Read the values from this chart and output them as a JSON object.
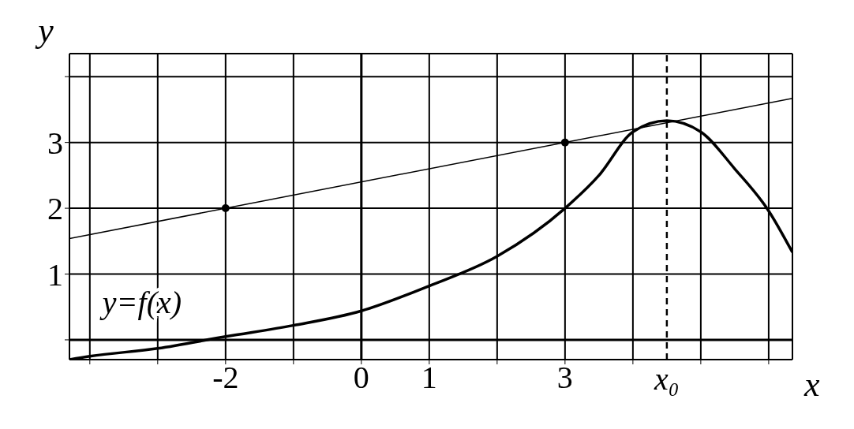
{
  "chart_data": {
    "type": "line",
    "xlabel": "x",
    "ylabel": "y",
    "xlim": [
      -4.3,
      6.35
    ],
    "ylim": [
      -0.3,
      4.35
    ],
    "xticks": [
      {
        "value": -4,
        "label": null
      },
      {
        "value": -3,
        "label": null
      },
      -2,
      {
        "value": -1,
        "label": null
      },
      0,
      1,
      {
        "value": 2,
        "label": null
      },
      3,
      {
        "value": 4,
        "label": null
      },
      {
        "value": 5,
        "label": null
      },
      {
        "value": 6,
        "label": null
      }
    ],
    "yticks": [
      {
        "value": 0,
        "label": null
      },
      1,
      2,
      3,
      {
        "value": 4,
        "label": null
      }
    ],
    "grid": true,
    "legend": false,
    "marker": "none",
    "line_style": "solid",
    "series": [
      {
        "name": "y=f(x)",
        "type": "line",
        "color": "#000000",
        "x": [
          -4.3,
          -4,
          -3,
          -2,
          -1,
          0,
          1,
          2,
          3,
          3.5,
          4,
          4.5,
          5,
          5.5,
          6,
          6.35
        ],
        "values": [
          -0.3,
          -0.25,
          -0.13,
          0.05,
          0.22,
          0.44,
          0.82,
          1.27,
          2.0,
          2.5,
          3.16,
          3.33,
          3.16,
          2.6,
          1.96,
          1.33
        ]
      },
      {
        "type": "line",
        "color": "#000000",
        "x": [
          -4.3,
          6.35
        ],
        "values": [
          1.54,
          3.67
        ]
      },
      {
        "type": "scatter",
        "marker": "circle",
        "color": "#000000",
        "x": [
          -2,
          3
        ],
        "values": [
          2,
          3
        ]
      }
    ],
    "ref_lines": [
      {
        "axis": "x",
        "value": 4.5,
        "label": "x₀",
        "line_style": "dashed",
        "color": "#000000"
      }
    ]
  }
}
